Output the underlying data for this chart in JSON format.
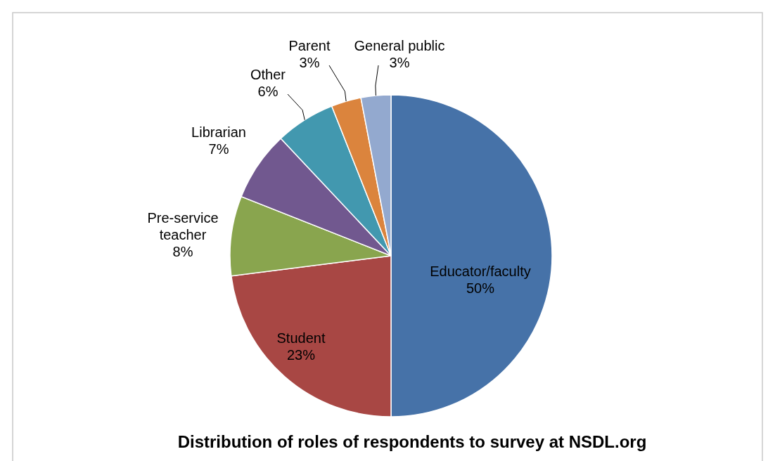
{
  "chart_data": {
    "type": "pie",
    "title": "Distribution of roles of respondents to survey at NSDL.org",
    "categories": [
      "Educator/faculty",
      "Student",
      "Pre-service teacher",
      "Librarian",
      "Other",
      "Parent",
      "General public"
    ],
    "values": [
      50,
      23,
      8,
      7,
      6,
      3,
      3
    ],
    "colors": [
      "#4672a8",
      "#a84744",
      "#89a54e",
      "#71588f",
      "#4298af",
      "#db843d",
      "#93a9cf"
    ],
    "value_labels": [
      "50%",
      "23%",
      "8%",
      "7%",
      "6%",
      "3%",
      "3%"
    ]
  }
}
